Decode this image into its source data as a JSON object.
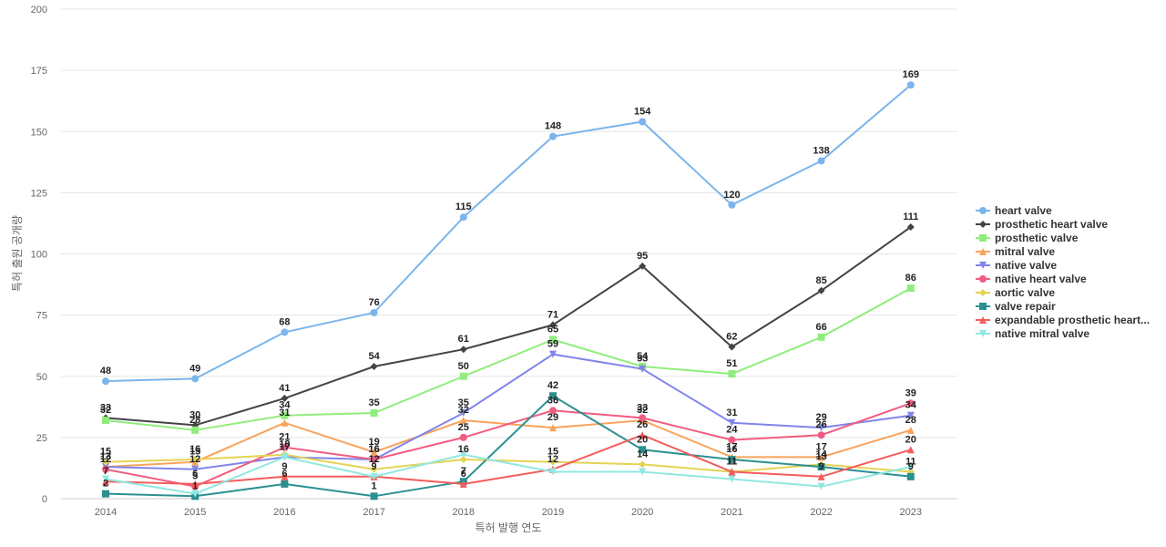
{
  "chart_data": {
    "type": "line",
    "title": "",
    "xlabel": "특허 발행 연도",
    "ylabel": "특허 출원 공개량",
    "x": [
      2014,
      2015,
      2016,
      2017,
      2018,
      2019,
      2020,
      2021,
      2022,
      2023
    ],
    "ylim": [
      0,
      200
    ],
    "yticks": [
      0,
      25,
      50,
      75,
      100,
      125,
      150,
      175,
      200
    ],
    "grid": true,
    "legend_position": "right",
    "series": [
      {
        "name": "heart valve",
        "color": "#7cb5ec",
        "marker": "circle",
        "values": [
          48,
          49,
          68,
          76,
          115,
          148,
          154,
          120,
          138,
          169
        ]
      },
      {
        "name": "prosthetic heart valve",
        "color": "#434348",
        "marker": "diamond",
        "values": [
          33,
          30,
          41,
          54,
          61,
          71,
          95,
          62,
          85,
          111
        ]
      },
      {
        "name": "prosthetic valve",
        "color": "#90ed7d",
        "marker": "square",
        "values": [
          32,
          28,
          34,
          35,
          50,
          65,
          54,
          51,
          66,
          86
        ]
      },
      {
        "name": "mitral valve",
        "color": "#f7a35c",
        "marker": "triangle",
        "values": [
          13,
          15,
          31,
          19,
          32,
          29,
          32,
          17,
          17,
          28
        ]
      },
      {
        "name": "native valve",
        "color": "#8085e9",
        "marker": "triangle-down",
        "values": [
          13,
          12,
          17,
          16,
          35,
          59,
          53,
          31,
          29,
          34
        ]
      },
      {
        "name": "native heart valve",
        "color": "#f15c80",
        "marker": "circle",
        "values": [
          12,
          5,
          21,
          16,
          25,
          36,
          33,
          24,
          26,
          39
        ]
      },
      {
        "name": "aortic valve",
        "color": "#e4d354",
        "marker": "diamond",
        "values": [
          15,
          16,
          18,
          12,
          16,
          15,
          14,
          11,
          14,
          11
        ]
      },
      {
        "name": "valve repair",
        "color": "#2b908f",
        "marker": "square",
        "values": [
          2,
          1,
          6,
          1,
          7,
          42,
          20,
          16,
          13,
          9
        ]
      },
      {
        "name": "expandable prosthetic heart...",
        "color": "#f45b5b",
        "marker": "triangle",
        "values": [
          7,
          6,
          9,
          9,
          6,
          12,
          26,
          11,
          9,
          20
        ]
      },
      {
        "name": "native mitral valve",
        "color": "#91e8e1",
        "marker": "triangle-down",
        "values": [
          8,
          2,
          17,
          9,
          18,
          11,
          11,
          8,
          5,
          13
        ]
      }
    ],
    "labeled_series": [
      0,
      1,
      2,
      3,
      4,
      5,
      6,
      7,
      8
    ]
  }
}
